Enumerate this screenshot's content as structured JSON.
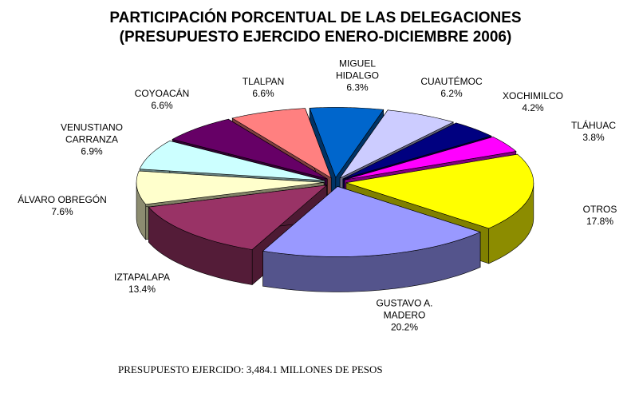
{
  "chart_data": {
    "type": "pie",
    "title": "PARTICIPACIÓN PORCENTUAL DE LAS DELEGACIONES",
    "subtitle": "(PRESUPUESTO EJERCIDO ENERO-DICIEMBRE 2006)",
    "categories": [
      "MIGUEL\nHIDALGO",
      "CUAUTÉMOC",
      "XOCHIMILCO",
      "TLÁHUAC",
      "OTROS",
      "GUSTAVO A.\nMADERO",
      "IZTAPALAPA",
      "ÁLVARO OBREGÓN",
      "VENUSTIANO\nCARRANZA",
      "COYOACÁN",
      "TLALPAN"
    ],
    "values": [
      6.3,
      6.2,
      4.2,
      3.8,
      17.8,
      20.2,
      13.4,
      7.6,
      6.9,
      6.6,
      6.6
    ],
    "value_labels": [
      "6.3%",
      "6.2%",
      "4.2%",
      "3.8%",
      "17.8%",
      "20.2%",
      "13.4%",
      "7.6%",
      "6.9%",
      "6.6%",
      "6.6%"
    ],
    "colors": [
      "#0066cc",
      "#ccccff",
      "#000080",
      "#ff00ff",
      "#ffff00",
      "#9999ff",
      "#993366",
      "#ffffcc",
      "#ccffff",
      "#660066",
      "#ff8080"
    ],
    "note": "PRESUPUESTO EJERCIDO: 3,484.1 MILLONES DE PESOS"
  }
}
